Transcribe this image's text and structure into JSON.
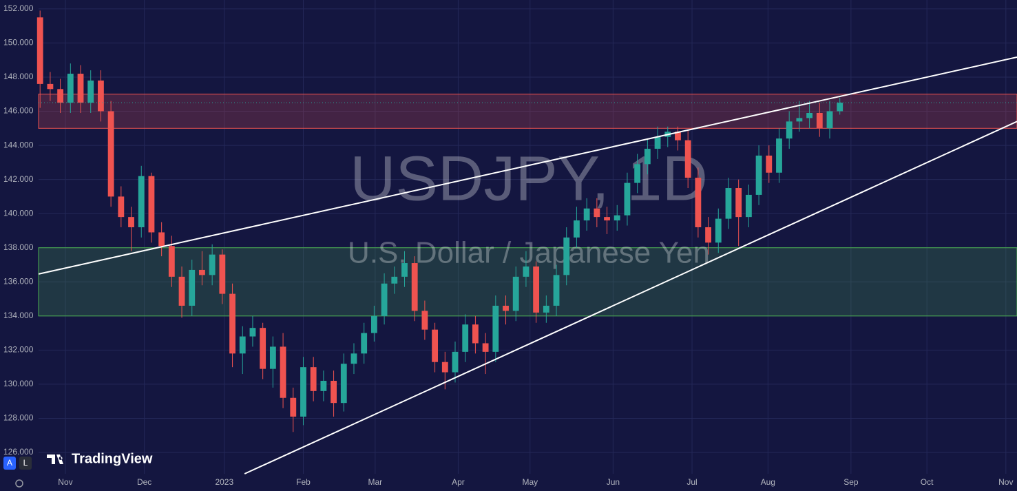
{
  "chart_data": {
    "type": "candlestick",
    "title": "USDJPY, 1D",
    "subtitle": "U.S. Dollar / Japanese Yen",
    "brand": "TradingView",
    "buttons": [
      "A",
      "L"
    ],
    "up_color": "#26a69a",
    "down_color": "#ef5350",
    "open": [
      151.5,
      147.6,
      147.3,
      146.5,
      148.2,
      146.5,
      147.8,
      146.0,
      141.0,
      139.8,
      139.2,
      142.2,
      138.9,
      138.1,
      136.3,
      134.6,
      136.7,
      136.4,
      137.6,
      135.3,
      131.8,
      132.8,
      133.3,
      130.9,
      132.2,
      129.2,
      128.1,
      131.0,
      129.6,
      130.2,
      128.9,
      131.2,
      131.8,
      133.0,
      134.0,
      135.9,
      136.3,
      137.1,
      134.3,
      133.2,
      131.3,
      130.7,
      131.9,
      133.5,
      132.4,
      131.9,
      134.6,
      134.3,
      136.3,
      136.9,
      134.2,
      134.6,
      136.4,
      138.6,
      139.6,
      140.3,
      139.8,
      139.6,
      139.9,
      141.8,
      142.9,
      143.8,
      144.5,
      144.8,
      144.3,
      142.1,
      139.2,
      138.3,
      139.7,
      141.5,
      139.8,
      141.1,
      143.4,
      142.4,
      144.4,
      145.4,
      145.6,
      145.9,
      145.0,
      146.0
    ],
    "high": [
      151.9,
      148.3,
      147.9,
      148.8,
      148.7,
      148.4,
      148.4,
      146.6,
      141.6,
      140.4,
      142.8,
      142.4,
      139.5,
      138.7,
      136.9,
      137.3,
      137.8,
      138.2,
      137.9,
      135.9,
      133.4,
      134.0,
      133.6,
      132.8,
      133.0,
      129.8,
      131.6,
      131.6,
      130.8,
      130.8,
      131.8,
      132.4,
      133.6,
      134.6,
      136.5,
      136.9,
      137.8,
      137.5,
      134.9,
      133.6,
      131.9,
      132.5,
      134.1,
      134.0,
      133.0,
      135.2,
      135.2,
      136.9,
      137.8,
      137.2,
      135.2,
      137.0,
      139.2,
      140.4,
      140.9,
      140.9,
      140.4,
      140.5,
      142.4,
      143.5,
      144.4,
      145.1,
      145.1,
      145.1,
      144.9,
      142.7,
      139.8,
      140.3,
      142.1,
      142.0,
      141.7,
      144.0,
      144.0,
      145.0,
      146.0,
      146.6,
      146.6,
      146.5,
      146.6,
      146.8
    ],
    "low": [
      146.2,
      146.6,
      145.9,
      145.9,
      145.9,
      145.9,
      145.4,
      140.4,
      139.2,
      137.8,
      138.6,
      138.3,
      137.5,
      135.7,
      133.9,
      134.0,
      135.8,
      135.8,
      134.7,
      131.0,
      130.6,
      132.2,
      130.3,
      129.8,
      128.6,
      127.2,
      127.6,
      129.0,
      129.0,
      128.1,
      128.4,
      130.6,
      131.2,
      132.5,
      133.5,
      135.3,
      135.7,
      133.7,
      132.6,
      130.7,
      129.7,
      130.1,
      131.3,
      131.8,
      130.6,
      131.3,
      133.5,
      133.7,
      135.7,
      133.6,
      133.6,
      134.0,
      135.8,
      138.0,
      139.0,
      139.2,
      138.8,
      139.0,
      139.3,
      141.2,
      142.3,
      143.2,
      143.9,
      143.7,
      141.5,
      138.6,
      137.6,
      137.7,
      139.1,
      138.1,
      139.2,
      140.5,
      141.8,
      141.8,
      143.8,
      144.8,
      145.0,
      144.5,
      144.4,
      145.8
    ],
    "close": [
      147.6,
      147.3,
      146.5,
      148.2,
      146.5,
      147.8,
      146.0,
      141.0,
      139.8,
      139.2,
      142.2,
      138.9,
      138.1,
      136.3,
      134.6,
      136.7,
      136.4,
      137.6,
      135.3,
      131.8,
      132.8,
      133.3,
      130.9,
      132.2,
      129.2,
      128.1,
      131.0,
      129.6,
      130.2,
      128.9,
      131.2,
      131.8,
      133.0,
      134.0,
      135.9,
      136.3,
      137.1,
      134.3,
      133.2,
      131.3,
      130.7,
      131.9,
      133.5,
      132.4,
      131.9,
      134.6,
      134.3,
      136.3,
      136.9,
      134.2,
      134.6,
      136.4,
      138.6,
      139.6,
      140.3,
      139.8,
      139.6,
      139.9,
      141.8,
      142.9,
      143.8,
      144.5,
      144.8,
      144.3,
      142.1,
      139.2,
      138.3,
      139.7,
      141.5,
      139.8,
      141.1,
      143.4,
      142.4,
      144.4,
      145.4,
      145.6,
      145.9,
      145.0,
      146.0,
      146.5
    ],
    "zones": [
      {
        "range": [
          145,
          147
        ],
        "color": "#ef5350"
      },
      {
        "range": [
          134,
          138
        ],
        "color": "#4caf50"
      }
    ],
    "trendlines": [
      {
        "x": [
          -0.14,
          96.5
        ],
        "y": [
          136.46,
          149.17
        ]
      },
      {
        "x": [
          20.2,
          96.5
        ],
        "y": [
          124.75,
          145.4
        ]
      }
    ],
    "xlim": [
      -0.15,
      96.5
    ],
    "ylim": [
      124.75,
      152.52
    ],
    "xticks": [
      {
        "value": 2.5,
        "label": "Nov"
      },
      {
        "value": 10.3,
        "label": "Dec"
      },
      {
        "value": 18.2,
        "label": "2023"
      },
      {
        "value": 26,
        "label": "Feb"
      },
      {
        "value": 33.1,
        "label": "Mar"
      },
      {
        "value": 41.3,
        "label": "Apr"
      },
      {
        "value": 48.4,
        "label": "May"
      },
      {
        "value": 56.6,
        "label": "Jun"
      },
      {
        "value": 64.4,
        "label": "Jul"
      },
      {
        "value": 71.9,
        "label": "Aug"
      },
      {
        "value": 80.1,
        "label": "Sep"
      },
      {
        "value": 87.6,
        "label": "Oct"
      },
      {
        "value": 95.4,
        "label": "Nov"
      }
    ],
    "yticks": [
      {
        "value": 126,
        "label": "126.000"
      },
      {
        "value": 128,
        "label": "128.000"
      },
      {
        "value": 130,
        "label": "130.000"
      },
      {
        "value": 132,
        "label": "132.000"
      },
      {
        "value": 134,
        "label": "134.000"
      },
      {
        "value": 136,
        "label": "136.000"
      },
      {
        "value": 138,
        "label": "138.000"
      },
      {
        "value": 140,
        "label": "140.000"
      },
      {
        "value": 142,
        "label": "142.000"
      },
      {
        "value": 144,
        "label": "144.000"
      },
      {
        "value": 146,
        "label": "146.000"
      },
      {
        "value": 148,
        "label": "148.000"
      },
      {
        "value": 150,
        "label": "150.000"
      },
      {
        "value": 152,
        "label": "152.000"
      }
    ],
    "grid": true
  }
}
